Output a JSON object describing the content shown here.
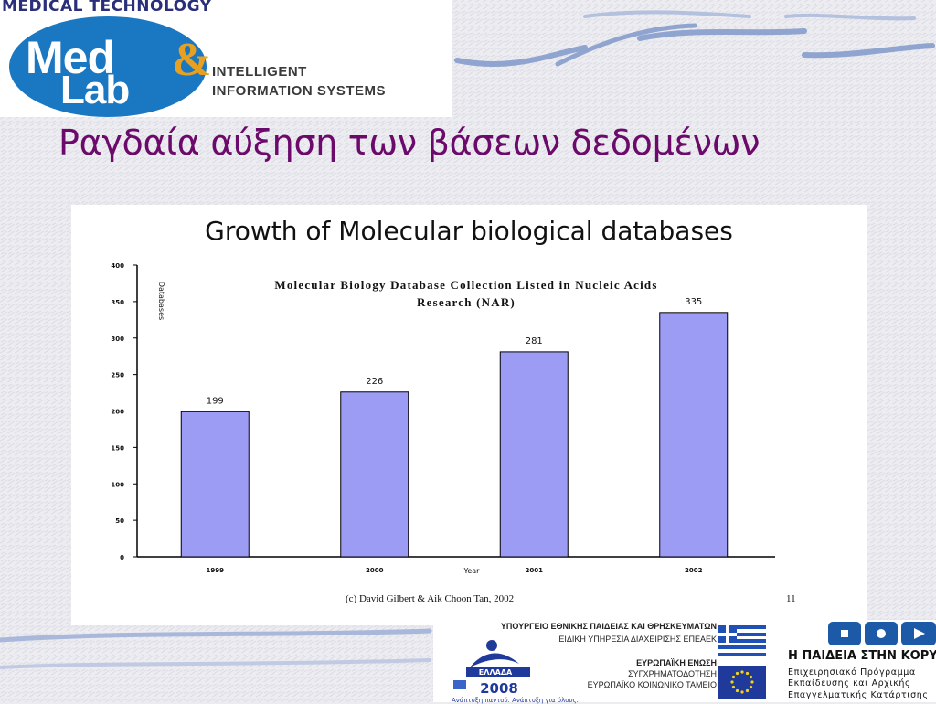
{
  "logo": {
    "arc_text": "MEDICAL TECHNOLOGY",
    "med": "Med",
    "lab": "Lab",
    "amp": "&",
    "line1": "INTELLIGENT",
    "line2": "INFORMATION SYSTEMS"
  },
  "slide": {
    "title": "Ραγδαία αύξηση των βάσεων δεδομένων",
    "title_color": "#6b0a6b"
  },
  "chart_data": {
    "type": "bar",
    "title": "Growth of Molecular biological databases",
    "subtitle_lines": [
      "Molecular Biology Database Collection Listed in Nucleic Acids",
      "Research (NAR)"
    ],
    "categories": [
      "1999",
      "2000",
      "2001",
      "2002"
    ],
    "values": [
      199,
      226,
      281,
      335
    ],
    "data_labels": [
      "199",
      "226",
      "281",
      "335"
    ],
    "ylabel": "Databases",
    "xlabel": "Year",
    "yticks": [
      "0",
      "50",
      "100",
      "150",
      "200",
      "250",
      "300",
      "350",
      "400"
    ],
    "ylim": [
      0,
      400
    ],
    "bar_color": "#9c9cf5",
    "grid": false,
    "credit": "(c) David Gilbert & Aik Choon Tan, 2002",
    "page_number": "11"
  },
  "footer": {
    "ministry_line1": "ΥΠΟΥΡΓΕΙΟ ΕΘΝΙΚΗΣ ΠΑΙΔΕΙΑΣ ΚΑΙ ΘΡΗΣΚΕΥΜΑΤΩΝ",
    "ministry_line2": "ΕΙΔΙΚΗ ΥΠΗΡΕΣΙΑ ΔΙΑΧΕΙΡΙΣΗΣ ΕΠΕΑΕΚ",
    "eu_line1": "ΕΥΡΩΠΑΪΚΗ ΕΝΩΣΗ",
    "eu_line2": "ΣΥΓΧΡΗΜΑΤΟΔΟΤΗΣΗ",
    "eu_line3": "ΕΥΡΩΠΑΪΚΟ ΚΟΙΝΩΝΙΚΟ ΤΑΜΕΙΟ",
    "greece_label": "ΕΛΛΑΔΑ",
    "greece_year": "2008",
    "greece_slogan": "Ανάπτυξη παντού. Ανάπτυξη για όλους.",
    "paideia_title": "Η ΠΑΙΔΕΙΑ ΣΤΗΝ ΚΟΡΥΦΗ",
    "paideia_line1": "Επιχειρησιακό Πρόγραμμα",
    "paideia_line2": "Εκπαίδευσης και Αρχικής",
    "paideia_line3": "Επαγγελματικής Κατάρτισης"
  }
}
